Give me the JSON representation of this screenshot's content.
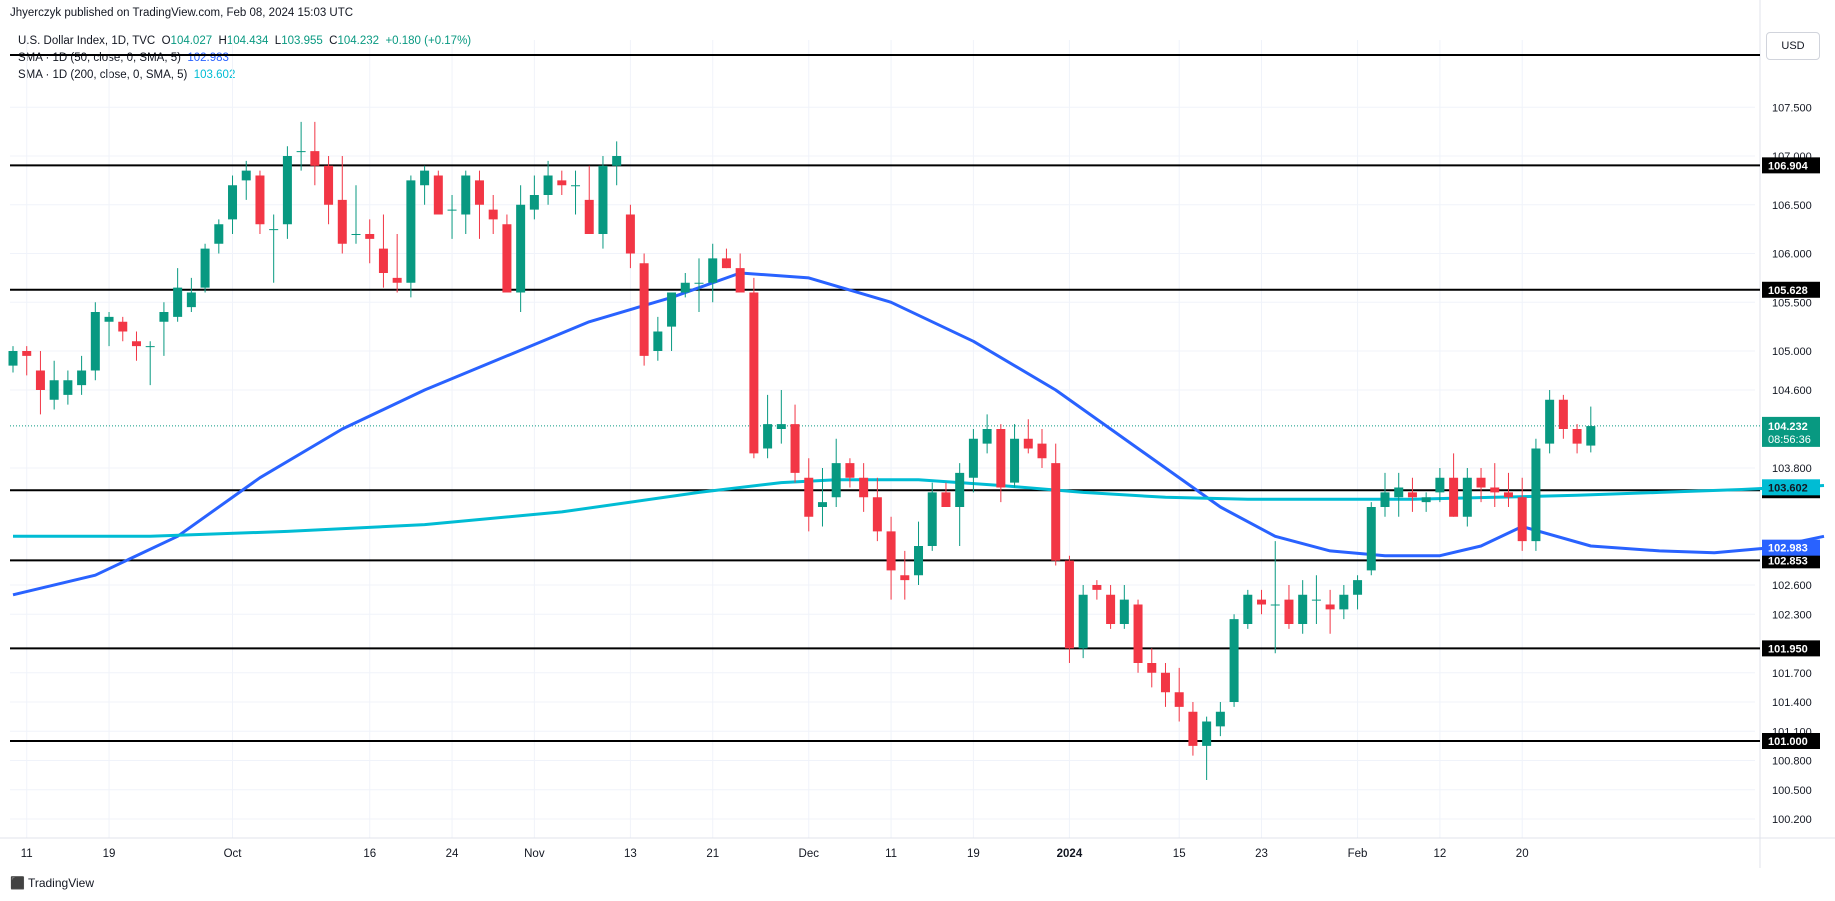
{
  "caption": "Jhyerczyk published on TradingView.com, Feb 08, 2024 15:03 UTC",
  "legend": {
    "symbol": "U.S. Dollar Index, 1D, TVC",
    "open_label": "O",
    "open": "104.027",
    "high_label": "H",
    "high": "104.434",
    "low_label": "L",
    "low": "103.955",
    "close_label": "C",
    "close": "104.232",
    "change": "+0.180 (+0.17%)",
    "sma50_label": "SMA · 1D (50, close, 0, SMA, 5)",
    "sma50_value": "102.983",
    "sma200_label": "SMA · 1D (200, close, 0, SMA, 5)",
    "sma200_value": "103.602"
  },
  "currency_button": "USD",
  "brand": "TradingView",
  "colors": {
    "up": "#089981",
    "down": "#f23645",
    "sma50": "#2962ff",
    "sma200": "#00bcd4",
    "hline": "#000000",
    "grid": "#f0f3fa",
    "last_price_line": "#089981"
  },
  "chart_data": {
    "type": "candlestick",
    "title": "U.S. Dollar Index, 1D, TVC",
    "ylim": [
      100.0,
      108.0
    ],
    "y_ticks": [
      "107.500",
      "107.000",
      "106.500",
      "106.000",
      "105.500",
      "105.000",
      "104.600",
      "103.800",
      "102.600",
      "102.300",
      "101.700",
      "101.400",
      "101.100",
      "100.800",
      "100.500",
      "100.200"
    ],
    "x_ticks": [
      "11",
      "19",
      "Oct",
      "16",
      "24",
      "Nov",
      "13",
      "21",
      "Dec",
      "11",
      "19",
      "2024",
      "15",
      "23",
      "Feb",
      "12",
      "20"
    ],
    "x_tick_bars": [
      1,
      7,
      16,
      26,
      32,
      38,
      45,
      51,
      58,
      64,
      70,
      77,
      85,
      91,
      98,
      104,
      110
    ],
    "horizontal_levels": [
      "106.904",
      "105.628",
      "103.572",
      "102.853",
      "101.950",
      "101.000"
    ],
    "price_labels": {
      "last": "104.232",
      "countdown": "08:56:36",
      "sma200": "103.602",
      "sma50": "102.983"
    },
    "candles": [
      [
        104.85,
        105.05,
        104.78,
        105.0
      ],
      [
        105.0,
        105.05,
        104.75,
        104.95
      ],
      [
        104.8,
        105.0,
        104.35,
        104.6
      ],
      [
        104.5,
        104.9,
        104.4,
        104.7
      ],
      [
        104.55,
        104.8,
        104.45,
        104.7
      ],
      [
        104.65,
        104.95,
        104.55,
        104.8
      ],
      [
        104.8,
        105.5,
        104.7,
        105.4
      ],
      [
        105.3,
        105.4,
        105.05,
        105.35
      ],
      [
        105.3,
        105.35,
        105.1,
        105.2
      ],
      [
        105.1,
        105.2,
        104.9,
        105.05
      ],
      [
        105.05,
        105.1,
        104.65,
        105.05
      ],
      [
        105.3,
        105.5,
        104.95,
        105.4
      ],
      [
        105.35,
        105.85,
        105.3,
        105.65
      ],
      [
        105.45,
        105.75,
        105.4,
        105.6
      ],
      [
        105.65,
        106.1,
        105.6,
        106.05
      ],
      [
        106.1,
        106.35,
        106.0,
        106.3
      ],
      [
        106.35,
        106.8,
        106.2,
        106.7
      ],
      [
        106.75,
        106.95,
        106.55,
        106.85
      ],
      [
        106.8,
        106.85,
        106.2,
        106.3
      ],
      [
        106.25,
        106.4,
        105.7,
        106.25
      ],
      [
        106.3,
        107.1,
        106.15,
        107.0
      ],
      [
        107.05,
        107.35,
        106.85,
        107.05
      ],
      [
        107.05,
        107.35,
        106.7,
        106.9
      ],
      [
        106.9,
        107.0,
        106.3,
        106.5
      ],
      [
        106.55,
        107.0,
        106.0,
        106.1
      ],
      [
        106.2,
        106.7,
        106.1,
        106.2
      ],
      [
        106.2,
        106.35,
        105.9,
        106.15
      ],
      [
        106.05,
        106.4,
        105.65,
        105.8
      ],
      [
        105.75,
        106.2,
        105.6,
        105.7
      ],
      [
        105.7,
        106.8,
        105.55,
        106.75
      ],
      [
        106.7,
        106.9,
        106.5,
        106.85
      ],
      [
        106.8,
        106.85,
        106.4,
        106.4
      ],
      [
        106.45,
        106.6,
        106.15,
        106.45
      ],
      [
        106.4,
        106.85,
        106.2,
        106.8
      ],
      [
        106.75,
        106.85,
        106.15,
        106.5
      ],
      [
        106.45,
        106.6,
        106.2,
        106.35
      ],
      [
        106.3,
        106.4,
        105.65,
        105.6
      ],
      [
        105.6,
        106.7,
        105.4,
        106.5
      ],
      [
        106.45,
        106.8,
        106.35,
        106.6
      ],
      [
        106.6,
        106.95,
        106.5,
        106.8
      ],
      [
        106.75,
        106.85,
        106.6,
        106.7
      ],
      [
        106.7,
        106.85,
        106.4,
        106.7
      ],
      [
        106.55,
        106.9,
        106.25,
        106.2
      ],
      [
        106.2,
        107.0,
        106.05,
        106.9
      ],
      [
        106.9,
        107.15,
        106.7,
        107.0
      ],
      [
        106.4,
        106.5,
        105.85,
        106.0
      ],
      [
        105.9,
        106.0,
        104.85,
        104.95
      ],
      [
        105.0,
        105.35,
        104.9,
        105.2
      ],
      [
        105.25,
        105.6,
        105.0,
        105.6
      ],
      [
        105.6,
        105.8,
        105.55,
        105.7
      ],
      [
        105.7,
        105.95,
        105.4,
        105.7
      ],
      [
        105.7,
        106.1,
        105.5,
        105.95
      ],
      [
        105.95,
        106.05,
        105.85,
        105.85
      ],
      [
        105.85,
        106.0,
        105.6,
        105.6
      ],
      [
        105.6,
        105.75,
        103.9,
        103.95
      ],
      [
        104.0,
        104.55,
        103.9,
        104.25
      ],
      [
        104.2,
        104.6,
        104.05,
        104.25
      ],
      [
        104.25,
        104.45,
        103.65,
        103.75
      ],
      [
        103.7,
        103.9,
        103.15,
        103.3
      ],
      [
        103.4,
        103.8,
        103.2,
        103.45
      ],
      [
        103.5,
        104.1,
        103.4,
        103.85
      ],
      [
        103.85,
        103.9,
        103.6,
        103.7
      ],
      [
        103.7,
        103.85,
        103.35,
        103.5
      ],
      [
        103.5,
        103.7,
        103.05,
        103.15
      ],
      [
        103.15,
        103.3,
        102.45,
        102.75
      ],
      [
        102.7,
        102.95,
        102.45,
        102.65
      ],
      [
        102.7,
        103.25,
        102.6,
        103.0
      ],
      [
        103.0,
        103.65,
        102.95,
        103.55
      ],
      [
        103.55,
        103.65,
        103.4,
        103.4
      ],
      [
        103.4,
        103.85,
        103.0,
        103.75
      ],
      [
        103.7,
        104.2,
        103.55,
        104.1
      ],
      [
        104.05,
        104.35,
        103.95,
        104.2
      ],
      [
        104.2,
        104.25,
        103.45,
        103.6
      ],
      [
        103.65,
        104.25,
        103.6,
        104.1
      ],
      [
        104.1,
        104.3,
        103.95,
        104.0
      ],
      [
        104.05,
        104.2,
        103.8,
        103.9
      ],
      [
        103.85,
        104.05,
        102.8,
        102.85
      ],
      [
        102.85,
        102.9,
        101.8,
        101.95
      ],
      [
        101.95,
        102.6,
        101.85,
        102.5
      ],
      [
        102.6,
        102.65,
        102.45,
        102.55
      ],
      [
        102.5,
        102.6,
        102.15,
        102.2
      ],
      [
        102.2,
        102.6,
        102.15,
        102.45
      ],
      [
        102.4,
        102.45,
        101.7,
        101.8
      ],
      [
        101.8,
        101.95,
        101.55,
        101.7
      ],
      [
        101.7,
        101.8,
        101.35,
        101.5
      ],
      [
        101.5,
        101.75,
        101.2,
        101.35
      ],
      [
        101.3,
        101.4,
        100.85,
        100.95
      ],
      [
        100.95,
        101.25,
        100.6,
        101.2
      ],
      [
        101.15,
        101.4,
        101.05,
        101.3
      ],
      [
        101.4,
        102.3,
        101.35,
        102.25
      ],
      [
        102.2,
        102.55,
        102.15,
        102.5
      ],
      [
        102.45,
        102.55,
        102.3,
        102.4
      ],
      [
        102.4,
        103.05,
        101.9,
        102.4
      ],
      [
        102.45,
        102.6,
        102.15,
        102.2
      ],
      [
        102.2,
        102.65,
        102.1,
        102.5
      ],
      [
        102.45,
        102.7,
        102.2,
        102.45
      ],
      [
        102.4,
        102.55,
        102.1,
        102.35
      ],
      [
        102.35,
        102.6,
        102.25,
        102.5
      ],
      [
        102.5,
        102.7,
        102.35,
        102.65
      ],
      [
        102.75,
        103.45,
        102.7,
        103.4
      ],
      [
        103.4,
        103.75,
        103.3,
        103.55
      ],
      [
        103.5,
        103.75,
        103.3,
        103.6
      ],
      [
        103.55,
        103.7,
        103.35,
        103.5
      ],
      [
        103.45,
        103.55,
        103.35,
        103.5
      ],
      [
        103.55,
        103.8,
        103.45,
        103.7
      ],
      [
        103.7,
        103.95,
        103.3,
        103.3
      ],
      [
        103.3,
        103.8,
        103.2,
        103.7
      ],
      [
        103.7,
        103.8,
        103.45,
        103.6
      ],
      [
        103.6,
        103.85,
        103.4,
        103.55
      ],
      [
        103.55,
        103.75,
        103.4,
        103.5
      ],
      [
        103.5,
        103.7,
        102.95,
        103.05
      ],
      [
        103.05,
        104.1,
        102.95,
        104.0
      ],
      [
        104.05,
        104.6,
        103.95,
        104.5
      ],
      [
        104.5,
        104.55,
        104.1,
        104.2
      ],
      [
        104.2,
        104.25,
        103.95,
        104.05
      ],
      [
        104.03,
        104.43,
        103.96,
        104.23
      ]
    ],
    "series": [
      {
        "name": "SMA · 1D (50, close, 0, SMA, 5)",
        "color": "#2962ff",
        "points": [
          [
            0,
            102.5
          ],
          [
            6,
            102.7
          ],
          [
            12,
            103.1
          ],
          [
            18,
            103.7
          ],
          [
            24,
            104.2
          ],
          [
            30,
            104.6
          ],
          [
            36,
            104.95
          ],
          [
            42,
            105.3
          ],
          [
            48,
            105.55
          ],
          [
            53,
            105.8
          ],
          [
            58,
            105.75
          ],
          [
            64,
            105.5
          ],
          [
            70,
            105.1
          ],
          [
            76,
            104.6
          ],
          [
            80,
            104.2
          ],
          [
            84,
            103.8
          ],
          [
            88,
            103.4
          ],
          [
            92,
            103.1
          ],
          [
            96,
            102.95
          ],
          [
            100,
            102.9
          ],
          [
            104,
            102.9
          ],
          [
            107,
            103.0
          ],
          [
            110,
            103.2
          ],
          [
            115,
            103.0
          ],
          [
            120,
            102.95
          ],
          [
            124,
            102.93
          ],
          [
            128,
            102.98
          ],
          [
            132,
            103.1
          ]
        ]
      },
      {
        "name": "SMA · 1D (200, close, 0, SMA, 5)",
        "color": "#00bcd4",
        "points": [
          [
            0,
            103.1
          ],
          [
            10,
            103.1
          ],
          [
            20,
            103.15
          ],
          [
            30,
            103.22
          ],
          [
            40,
            103.35
          ],
          [
            50,
            103.55
          ],
          [
            56,
            103.65
          ],
          [
            60,
            103.68
          ],
          [
            66,
            103.68
          ],
          [
            72,
            103.62
          ],
          [
            78,
            103.55
          ],
          [
            84,
            103.5
          ],
          [
            90,
            103.48
          ],
          [
            96,
            103.48
          ],
          [
            102,
            103.48
          ],
          [
            108,
            103.5
          ],
          [
            114,
            103.52
          ],
          [
            120,
            103.55
          ],
          [
            126,
            103.58
          ],
          [
            132,
            103.62
          ]
        ]
      }
    ]
  }
}
